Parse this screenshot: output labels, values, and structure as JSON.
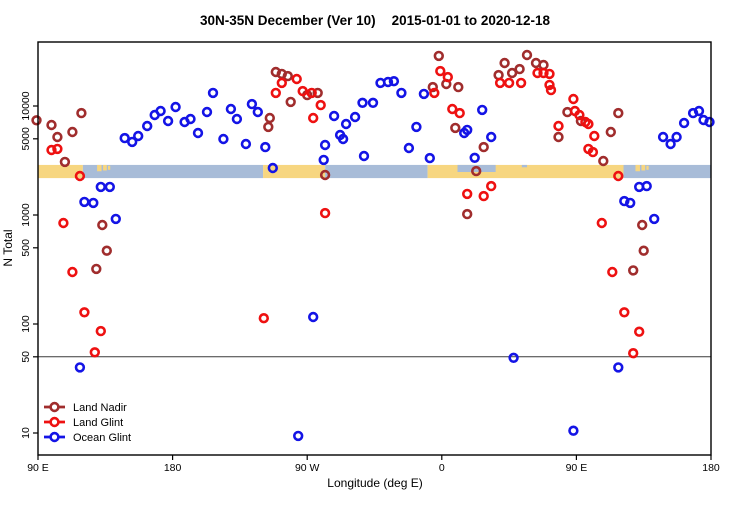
{
  "title": {
    "part1": "30N-35N December (Ver 10)",
    "part2": "2015-01-01 to 2020-12-18"
  },
  "axes": {
    "x_label": "Longitude (deg E)",
    "y_label": "N Total",
    "x_ticks": [
      {
        "lon": 90,
        "label": "90 E"
      },
      {
        "lon": 180,
        "label": "180"
      },
      {
        "lon": 270,
        "label": "90 W"
      },
      {
        "lon": 360,
        "label": "0"
      },
      {
        "lon": 450,
        "label": "90 E"
      },
      {
        "lon": 540,
        "label": "180"
      }
    ],
    "y_ticks": [
      {
        "value": 10000,
        "label": "10000"
      },
      {
        "value": 5000,
        "label": "5000"
      },
      {
        "value": 1000,
        "label": "1000"
      },
      {
        "value": 500,
        "label": "500"
      },
      {
        "value": 100,
        "label": "100"
      },
      {
        "value": 50,
        "label": "50"
      },
      {
        "value": 10,
        "label": "10"
      }
    ],
    "x_range_deg_east": [
      90,
      540
    ],
    "y_scale": "log10"
  },
  "reference_line": {
    "value": 50,
    "color": "#3a3a3a"
  },
  "land_ocean_strip": {
    "v_range": [
      2180,
      2880
    ],
    "colors": {
      "land": "#F7D680",
      "ocean": "#A8BCD8"
    },
    "segments": [
      {
        "type": "land",
        "lon": [
          90,
          120
        ]
      },
      {
        "type": "ocean",
        "lon": [
          120,
          240.5
        ]
      },
      {
        "type": "land",
        "lon": [
          240.5,
          282
        ]
      },
      {
        "type": "ocean",
        "lon": [
          282,
          350.5
        ]
      },
      {
        "type": "land",
        "lon": [
          350.5,
          481.5
        ]
      },
      {
        "type": "ocean",
        "lon": [
          481.5,
          540
        ]
      }
    ],
    "features": [
      {
        "type": "ocean",
        "lon": [
          370.5,
          396
        ],
        "v": [
          2880,
          2480
        ]
      },
      {
        "type": "ocean",
        "lon": [
          413.5,
          417
        ],
        "v": [
          2880,
          2740
        ]
      },
      {
        "type": "land",
        "lon": [
          129.5,
          132.5
        ],
        "v": [
          2880,
          2520
        ]
      },
      {
        "type": "land",
        "lon": [
          133.5,
          136
        ],
        "v": [
          2880,
          2560
        ]
      },
      {
        "type": "land",
        "lon": [
          136.8,
          138.3
        ],
        "v": [
          2830,
          2600
        ]
      },
      {
        "type": "land",
        "lon": [
          489.5,
          492.5
        ],
        "v": [
          2880,
          2520
        ]
      },
      {
        "type": "land",
        "lon": [
          493.5,
          496
        ],
        "v": [
          2880,
          2560
        ]
      },
      {
        "type": "land",
        "lon": [
          496.8,
          498.3
        ],
        "v": [
          2830,
          2600
        ]
      }
    ]
  },
  "legend": {
    "items": [
      {
        "label": "Land Nadir",
        "color": "#A02D2D"
      },
      {
        "label": "Land Glint",
        "color": "#EE1111"
      },
      {
        "label": "Ocean Glint",
        "color": "#1414E6"
      }
    ]
  },
  "chart_data": {
    "type": "scatter",
    "title": "30N-35N December (Ver 10)   2015-01-01 to 2020-12-18",
    "xlabel": "Longitude (deg E)",
    "ylabel": "N Total",
    "x_axis_note": "x is longitude in deg E increasing eastward from 90E; 270=90W, 360=0, 450=90E, 540=180",
    "ylim": [
      6,
      40000
    ],
    "grid": false,
    "legend_position": "bottom-left-inside",
    "series": [
      {
        "id": "land-nadir",
        "name": "Land Nadir",
        "color": "#A02D2D",
        "marker": "open-circle",
        "points": [
          [
            89,
            7400
          ],
          [
            99,
            6700
          ],
          [
            103,
            5200
          ],
          [
            108,
            3070
          ],
          [
            113,
            5770
          ],
          [
            119,
            8600
          ],
          [
            129,
            320
          ],
          [
            133,
            810
          ],
          [
            136,
            470
          ],
          [
            244,
            6430
          ],
          [
            245,
            7760
          ],
          [
            249,
            20500
          ],
          [
            253,
            19700
          ],
          [
            257,
            18800
          ],
          [
            259,
            10900
          ],
          [
            270,
            12600
          ],
          [
            277,
            13200
          ],
          [
            282,
            2330
          ],
          [
            354,
            14900
          ],
          [
            358,
            28800
          ],
          [
            363,
            15900
          ],
          [
            369,
            6300
          ],
          [
            371,
            14900
          ],
          [
            377,
            1020
          ],
          [
            383,
            2530
          ],
          [
            388,
            4200
          ],
          [
            398,
            19200
          ],
          [
            402,
            24800
          ],
          [
            407,
            20100
          ],
          [
            412,
            21800
          ],
          [
            417,
            29400
          ],
          [
            423,
            24800
          ],
          [
            428,
            23800
          ],
          [
            438,
            5200
          ],
          [
            444,
            8800
          ],
          [
            453,
            7280
          ],
          [
            468,
            3130
          ],
          [
            473,
            5770
          ],
          [
            478,
            8600
          ],
          [
            488,
            310
          ],
          [
            494,
            810
          ],
          [
            495,
            470
          ]
        ]
      },
      {
        "id": "land-glint",
        "name": "Land Glint",
        "color": "#EE1111",
        "marker": "open-circle",
        "points": [
          [
            99,
            3950
          ],
          [
            103,
            4040
          ],
          [
            107,
            845
          ],
          [
            113,
            300
          ],
          [
            118,
            2280
          ],
          [
            121,
            128
          ],
          [
            128,
            55
          ],
          [
            132,
            86
          ],
          [
            241,
            113
          ],
          [
            249,
            13200
          ],
          [
            253,
            16300
          ],
          [
            263,
            17700
          ],
          [
            267,
            13700
          ],
          [
            273,
            13200
          ],
          [
            274,
            7760
          ],
          [
            279,
            10200
          ],
          [
            282,
            1040
          ],
          [
            355,
            13200
          ],
          [
            359,
            20900
          ],
          [
            364,
            18400
          ],
          [
            367,
            9380
          ],
          [
            372,
            8600
          ],
          [
            377,
            1560
          ],
          [
            388,
            1490
          ],
          [
            393,
            1840
          ],
          [
            399,
            16300
          ],
          [
            405,
            16300
          ],
          [
            413,
            16300
          ],
          [
            424,
            20100
          ],
          [
            428,
            20100
          ],
          [
            432,
            19700
          ],
          [
            432,
            15600
          ],
          [
            433,
            14000
          ],
          [
            438,
            6560
          ],
          [
            448,
            11600
          ],
          [
            449,
            9000
          ],
          [
            452,
            8270
          ],
          [
            456,
            7130
          ],
          [
            458,
            6840
          ],
          [
            458,
            4040
          ],
          [
            461,
            3780
          ],
          [
            462,
            5310
          ],
          [
            467,
            845
          ],
          [
            474,
            300
          ],
          [
            478,
            2280
          ],
          [
            482,
            128
          ],
          [
            488,
            54
          ],
          [
            492,
            85
          ]
        ]
      },
      {
        "id": "ocean-glint",
        "name": "Ocean Glint",
        "color": "#1414E6",
        "marker": "open-circle",
        "points": [
          [
            118,
            40
          ],
          [
            121,
            1320
          ],
          [
            127,
            1290
          ],
          [
            132,
            1810
          ],
          [
            138,
            1810
          ],
          [
            142,
            920
          ],
          [
            148,
            5080
          ],
          [
            153,
            4680
          ],
          [
            157,
            5310
          ],
          [
            163,
            6560
          ],
          [
            168,
            8270
          ],
          [
            172,
            9000
          ],
          [
            177,
            7280
          ],
          [
            182,
            9790
          ],
          [
            188,
            7130
          ],
          [
            192,
            7600
          ],
          [
            197,
            5650
          ],
          [
            203,
            8810
          ],
          [
            207,
            13200
          ],
          [
            214,
            4980
          ],
          [
            219,
            9380
          ],
          [
            223,
            7600
          ],
          [
            229,
            4480
          ],
          [
            233,
            10400
          ],
          [
            237,
            8810
          ],
          [
            242,
            4200
          ],
          [
            247,
            2700
          ],
          [
            264,
            9.4
          ],
          [
            274,
            116
          ],
          [
            281,
            3200
          ],
          [
            282,
            4390
          ],
          [
            288,
            8090
          ],
          [
            292,
            5420
          ],
          [
            294,
            4980
          ],
          [
            296,
            6840
          ],
          [
            302,
            7930
          ],
          [
            307,
            10700
          ],
          [
            308,
            3480
          ],
          [
            314,
            10700
          ],
          [
            319,
            16300
          ],
          [
            324,
            16600
          ],
          [
            328,
            16900
          ],
          [
            333,
            13200
          ],
          [
            338,
            4120
          ],
          [
            343,
            6430
          ],
          [
            348,
            12900
          ],
          [
            352,
            3330
          ],
          [
            375,
            5650
          ],
          [
            377,
            6030
          ],
          [
            382,
            3350
          ],
          [
            387,
            9200
          ],
          [
            393,
            5200
          ],
          [
            408,
            49
          ],
          [
            448,
            10.5
          ],
          [
            478,
            40
          ],
          [
            482,
            1340
          ],
          [
            486,
            1290
          ],
          [
            492,
            1810
          ],
          [
            497,
            1840
          ],
          [
            502,
            920
          ],
          [
            508,
            5200
          ],
          [
            513,
            4480
          ],
          [
            517,
            5200
          ],
          [
            522,
            6980
          ],
          [
            528,
            8600
          ],
          [
            532,
            9000
          ],
          [
            535,
            7440
          ],
          [
            539,
            7130
          ]
        ]
      }
    ]
  }
}
